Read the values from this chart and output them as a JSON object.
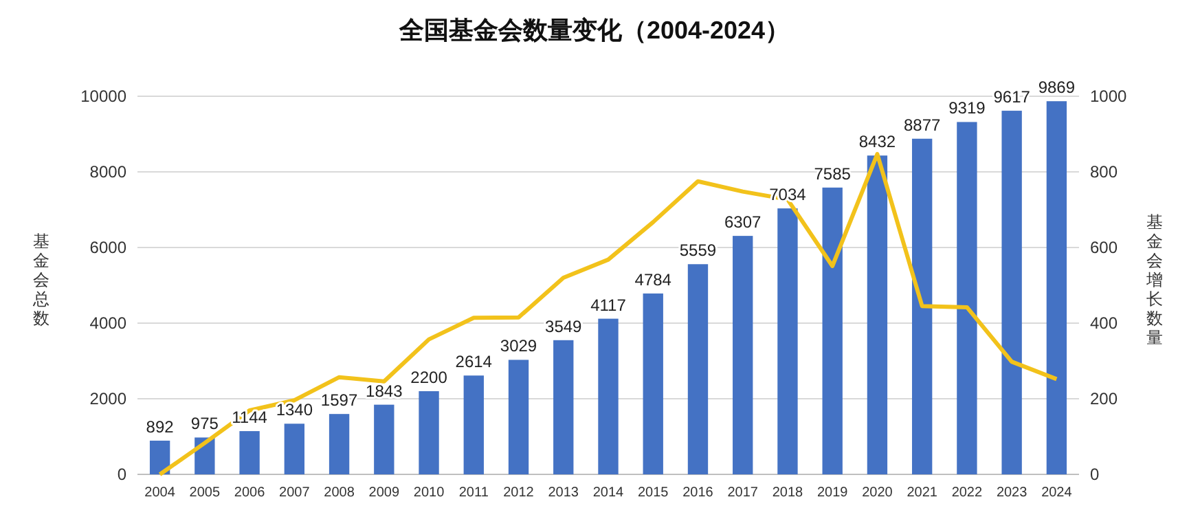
{
  "chart_data": {
    "type": "bar",
    "title": "全国基金会数量变化（2004-2024）",
    "categories": [
      "2004",
      "2005",
      "2006",
      "2007",
      "2008",
      "2009",
      "2010",
      "2011",
      "2012",
      "2013",
      "2014",
      "2015",
      "2016",
      "2017",
      "2018",
      "2019",
      "2020",
      "2021",
      "2022",
      "2023",
      "2024"
    ],
    "series": [
      {
        "color": "#4472c4",
        "values": [
          892,
          975,
          1144,
          1340,
          1597,
          1843,
          2200,
          2614,
          3029,
          3549,
          4117,
          4784,
          5559,
          6307,
          7034,
          7585,
          8432,
          8877,
          9319,
          9617,
          9869
        ],
        "value_labels": [
          "892",
          "975",
          "1144",
          "1340",
          "1597",
          "1843",
          "2200",
          "2614",
          "3029",
          "3549",
          "4117",
          "4784",
          "5559",
          "6307",
          "7034",
          "7585",
          "8432",
          "8877",
          "9319",
          "9617",
          "9869"
        ]
      },
      {
        "type": "line",
        "axis": "y2",
        "color": "#f2c21b",
        "values": [
          0,
          83,
          169,
          196,
          257,
          246,
          357,
          414,
          415,
          520,
          568,
          667,
          775,
          748,
          727,
          551,
          847,
          445,
          442,
          298,
          252
        ]
      }
    ],
    "ylabel": "基金会总数",
    "y2label": "基金会增长数量",
    "ylim": [
      0,
      10000
    ],
    "yticks": [
      0,
      2000,
      4000,
      6000,
      8000,
      10000
    ],
    "y2lim": [
      0,
      1000
    ],
    "y2ticks": [
      0,
      200,
      400,
      600,
      800,
      1000
    ],
    "grid": "y"
  }
}
